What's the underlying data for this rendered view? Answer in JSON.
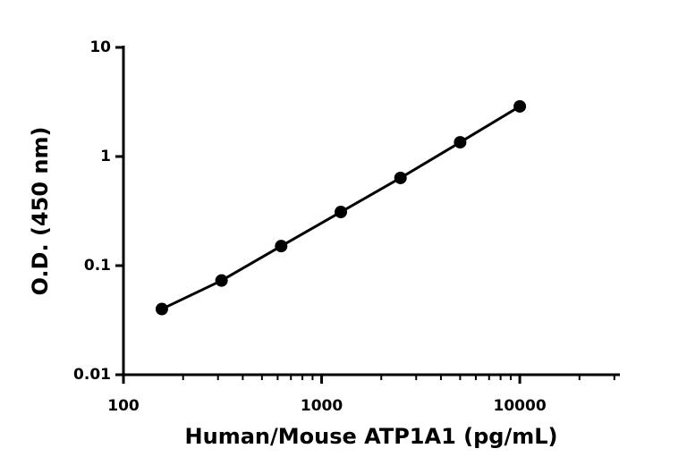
{
  "chart_data": {
    "type": "scatter",
    "x_label": "Human/Mouse ATP1A1 (pg/mL)",
    "y_label": "O.D. (450 nm)",
    "x": [
      156.25,
      312.5,
      625,
      1250,
      2500,
      5000,
      10000
    ],
    "values": [
      0.04,
      0.073,
      0.151,
      0.31,
      0.636,
      1.35,
      2.88
    ],
    "color": "#000000",
    "connect": true,
    "xscale": "log",
    "yscale": "log",
    "xlim": [
      100,
      32000
    ],
    "ylim": [
      0.01,
      10
    ],
    "xticks": [
      100,
      1000,
      10000
    ],
    "xminorticks": [
      200,
      300,
      400,
      500,
      600,
      700,
      800,
      900,
      2000,
      3000,
      4000,
      5000,
      6000,
      7000,
      8000,
      9000,
      20000,
      30000
    ],
    "yticks": [
      0.01,
      0.1,
      1,
      10
    ],
    "grid": false
  }
}
